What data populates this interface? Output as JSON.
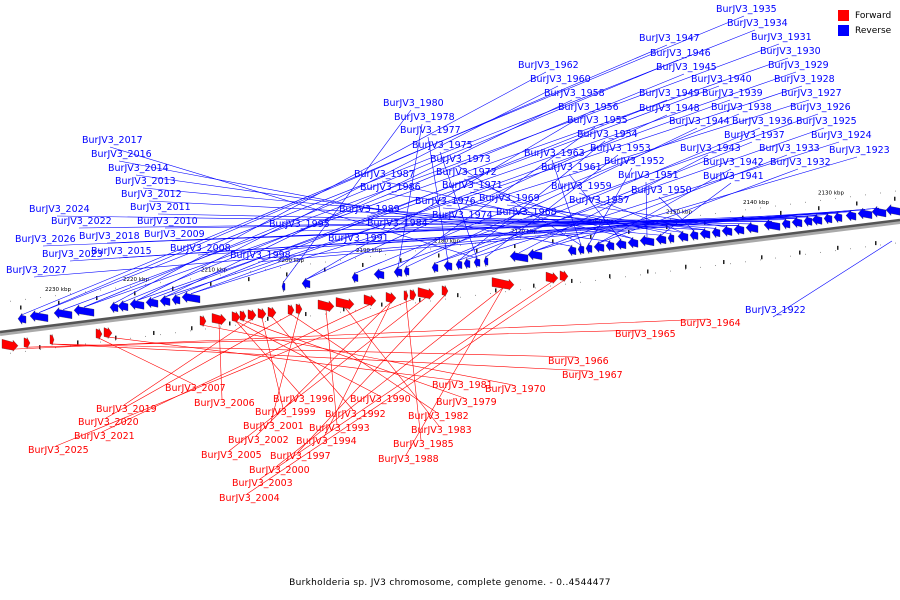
{
  "legend": {
    "forward_label": "Forward",
    "reverse_label": "Reverse",
    "forward_color": "#ff0000",
    "reverse_color": "#0000ff"
  },
  "caption": "Burkholderia sp. JV3 chromosome, complete genome. - 0..4544477",
  "ruler": {
    "ticks": [
      "2230 kbp",
      "2220 kbp",
      "2210 kbp",
      "2200 kbp",
      "2190 kbp",
      "2180 kbp",
      "2170 kbp",
      "2160 kbp",
      "2150 kbp",
      "2140 kbp",
      "2130 kbp"
    ]
  },
  "genes": {
    "reverse": [
      "BurJV3_1935",
      "BurJV3_1934",
      "BurJV3_1947",
      "BurJV3_1931",
      "BurJV3_1946",
      "BurJV3_1930",
      "BurJV3_1962",
      "BurJV3_1945",
      "BurJV3_1929",
      "BurJV3_1960",
      "BurJV3_1940",
      "BurJV3_1928",
      "BurJV3_1958",
      "BurJV3_1949",
      "BurJV3_1939",
      "BurJV3_1927",
      "BurJV3_1980",
      "BurJV3_1956",
      "BurJV3_1948",
      "BurJV3_1938",
      "BurJV3_1926",
      "BurJV3_1978",
      "BurJV3_1955",
      "BurJV3_1944",
      "BurJV3_1936",
      "BurJV3_1925",
      "BurJV3_1977",
      "BurJV3_1954",
      "BurJV3_1937",
      "BurJV3_1924",
      "BurJV3_2017",
      "BurJV3_1975",
      "BurJV3_1953",
      "BurJV3_1943",
      "BurJV3_1933",
      "BurJV3_1923",
      "BurJV3_2016",
      "BurJV3_1963",
      "BurJV3_1973",
      "BurJV3_1952",
      "BurJV3_1942",
      "BurJV3_1932",
      "BurJV3_2014",
      "BurJV3_1961",
      "BurJV3_1972",
      "BurJV3_1987",
      "BurJV3_1951",
      "BurJV3_1941",
      "BurJV3_2013",
      "BurJV3_1971",
      "BurJV3_1986",
      "BurJV3_1959",
      "BurJV3_1950",
      "BurJV3_2012",
      "BurJV3_1969",
      "BurJV3_1976",
      "BurJV3_1957",
      "BurJV3_2011",
      "BurJV3_2024",
      "BurJV3_1989",
      "BurJV3_1968",
      "BurJV3_1974",
      "BurJV3_2010",
      "BurJV3_2022",
      "BurJV3_1984",
      "BurJV3_1995",
      "BurJV3_2009",
      "BurJV3_2018",
      "BurJV3_1991",
      "BurJV3_2026",
      "BurJV3_2008",
      "BurJV3_2015",
      "BurJV3_2023",
      "BurJV3_1998",
      "BurJV3_2027",
      "BurJV3_1922"
    ],
    "forward": [
      "BurJV3_1964",
      "BurJV3_1965",
      "BurJV3_1966",
      "BurJV3_1967",
      "BurJV3_2007",
      "BurJV3_1981",
      "BurJV3_1970",
      "BurJV3_2006",
      "BurJV3_1996",
      "BurJV3_1990",
      "BurJV3_1979",
      "BurJV3_2019",
      "BurJV3_1999",
      "BurJV3_1992",
      "BurJV3_1982",
      "BurJV3_2020",
      "BurJV3_2001",
      "BurJV3_1993",
      "BurJV3_1983",
      "BurJV3_2021",
      "BurJV3_2002",
      "BurJV3_1994",
      "BurJV3_1985",
      "BurJV3_2025",
      "BurJV3_2005",
      "BurJV3_1997",
      "BurJV3_1988",
      "BurJV3_2000",
      "BurJV3_2003",
      "BurJV3_2004"
    ]
  }
}
